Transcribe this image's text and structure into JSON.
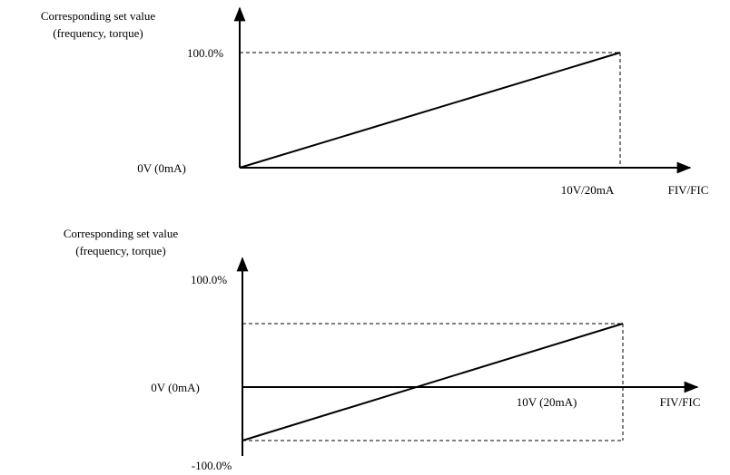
{
  "colors": {
    "ink": "#000000",
    "background": "#ffffff"
  },
  "graph_top": {
    "ylabel_line1": "Corresponding set value",
    "ylabel_line2": "(frequency, torque)",
    "y_max_label": "100.0%",
    "origin_label": "0V (0mA)",
    "x_max_label": "10V/20mA",
    "x_axis_label": "FIV/FIC"
  },
  "graph_bottom": {
    "ylabel_line1": "Corresponding set value",
    "ylabel_line2": "(frequency, torque)",
    "y_max_label": "100.0%",
    "origin_label": "0V (0mA)",
    "x_max_label": "10V (20mA)",
    "x_axis_label": "FIV/FIC",
    "y_min_label": "-100.0%"
  }
}
